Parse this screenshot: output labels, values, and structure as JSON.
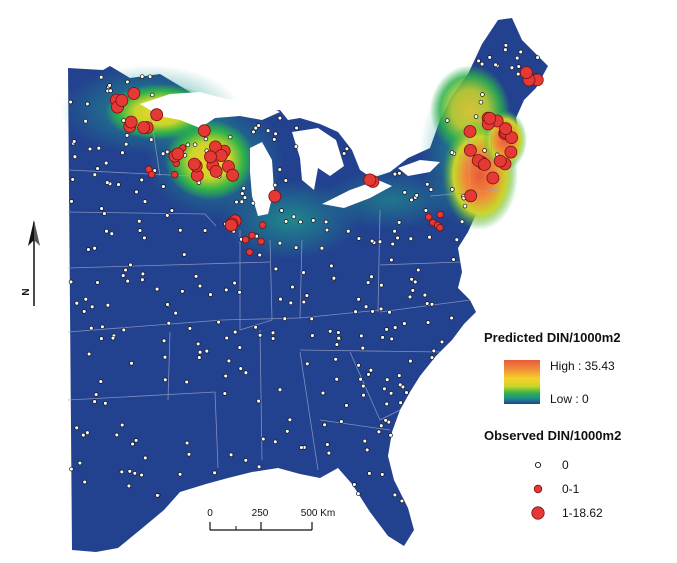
{
  "legend": {
    "predicted_title": "Predicted DIN/1000m2",
    "high_label": "High : 35.43",
    "low_label": "Low : 0",
    "observed_title": "Observed DIN/1000m2",
    "observed_classes": [
      "0",
      "0-1",
      "1-18.62"
    ]
  },
  "scale_bar": {
    "ticks": [
      "0",
      "250",
      "500 Km"
    ]
  },
  "north_arrow": {
    "label": "N"
  },
  "colors": {
    "low_base": "#22418f",
    "ramp": [
      "#22418f",
      "#1f8a8c",
      "#2fb24a",
      "#c9d62a",
      "#f6d02a",
      "#f08a3a",
      "#e8593a"
    ],
    "observed_fill": "#e53935"
  }
}
